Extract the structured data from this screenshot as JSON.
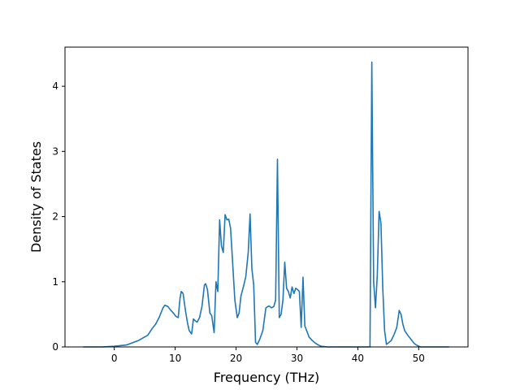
{
  "chart_data": {
    "type": "line",
    "title": "",
    "xlabel": "Frequency (THz)",
    "ylabel": "Density of States",
    "xlim": [
      -8.1,
      58.1
    ],
    "ylim": [
      0,
      4.6
    ],
    "xticks": [
      0,
      10,
      20,
      30,
      40,
      50
    ],
    "yticks": [
      0,
      1,
      2,
      3,
      4
    ],
    "grid": false,
    "line_color": "#1f77b4",
    "series": [
      {
        "x": [
          -5.1,
          -2.0,
          0.0,
          2.0,
          4.0,
          5.5,
          6.2,
          6.8,
          7.4,
          8.0,
          8.3,
          8.8,
          9.3,
          9.7,
          10.1,
          10.5,
          10.8,
          11.0,
          11.3,
          11.7,
          12.0,
          12.3,
          12.7,
          13.0,
          13.3,
          13.6,
          14.0,
          14.4,
          14.8,
          15.0,
          15.3,
          15.7,
          16.0,
          16.4,
          16.7,
          17.0,
          17.3,
          17.6,
          17.9,
          18.2,
          18.5,
          18.8,
          19.1,
          19.4,
          19.8,
          20.2,
          20.5,
          20.8,
          21.2,
          21.6,
          22.0,
          22.3,
          22.6,
          22.9,
          23.2,
          23.5,
          23.9,
          24.4,
          24.9,
          25.4,
          25.8,
          26.2,
          26.5,
          26.8,
          27.1,
          27.4,
          27.7,
          28.0,
          28.3,
          28.6,
          28.9,
          29.2,
          29.5,
          29.8,
          30.1,
          30.4,
          30.7,
          31.0,
          31.3,
          31.6,
          32.0,
          32.5,
          33.0,
          33.5,
          34.0,
          35.0,
          36.0,
          38.0,
          40.0,
          42.0,
          42.3,
          42.6,
          42.9,
          43.2,
          43.5,
          43.8,
          44.1,
          44.4,
          44.7,
          45.0,
          45.5,
          46.0,
          46.4,
          46.8,
          47.1,
          47.4,
          47.7,
          48.2,
          48.7,
          49.3,
          49.8,
          50.3,
          52.0,
          55.0
        ],
        "y": [
          0,
          0,
          0.01,
          0.03,
          0.1,
          0.18,
          0.28,
          0.35,
          0.46,
          0.6,
          0.64,
          0.62,
          0.56,
          0.52,
          0.47,
          0.45,
          0.75,
          0.85,
          0.82,
          0.55,
          0.38,
          0.25,
          0.2,
          0.43,
          0.4,
          0.38,
          0.45,
          0.62,
          0.95,
          0.97,
          0.88,
          0.52,
          0.48,
          0.22,
          1.0,
          0.85,
          1.95,
          1.55,
          1.45,
          2.03,
          1.95,
          1.96,
          1.82,
          1.35,
          0.72,
          0.45,
          0.52,
          0.78,
          0.92,
          1.08,
          1.45,
          2.04,
          1.2,
          0.95,
          0.07,
          0.04,
          0.12,
          0.25,
          0.6,
          0.63,
          0.6,
          0.62,
          0.72,
          2.88,
          0.45,
          0.5,
          0.72,
          1.3,
          0.9,
          0.85,
          0.75,
          0.92,
          0.82,
          0.9,
          0.88,
          0.85,
          0.3,
          1.07,
          0.32,
          0.25,
          0.15,
          0.1,
          0.06,
          0.03,
          0.01,
          0,
          0,
          0,
          0,
          0,
          4.37,
          1.0,
          0.6,
          1.1,
          2.08,
          1.9,
          0.9,
          0.25,
          0.04,
          0.06,
          0.1,
          0.2,
          0.3,
          0.56,
          0.5,
          0.35,
          0.25,
          0.18,
          0.12,
          0.05,
          0.02,
          0,
          0,
          0
        ]
      }
    ]
  }
}
